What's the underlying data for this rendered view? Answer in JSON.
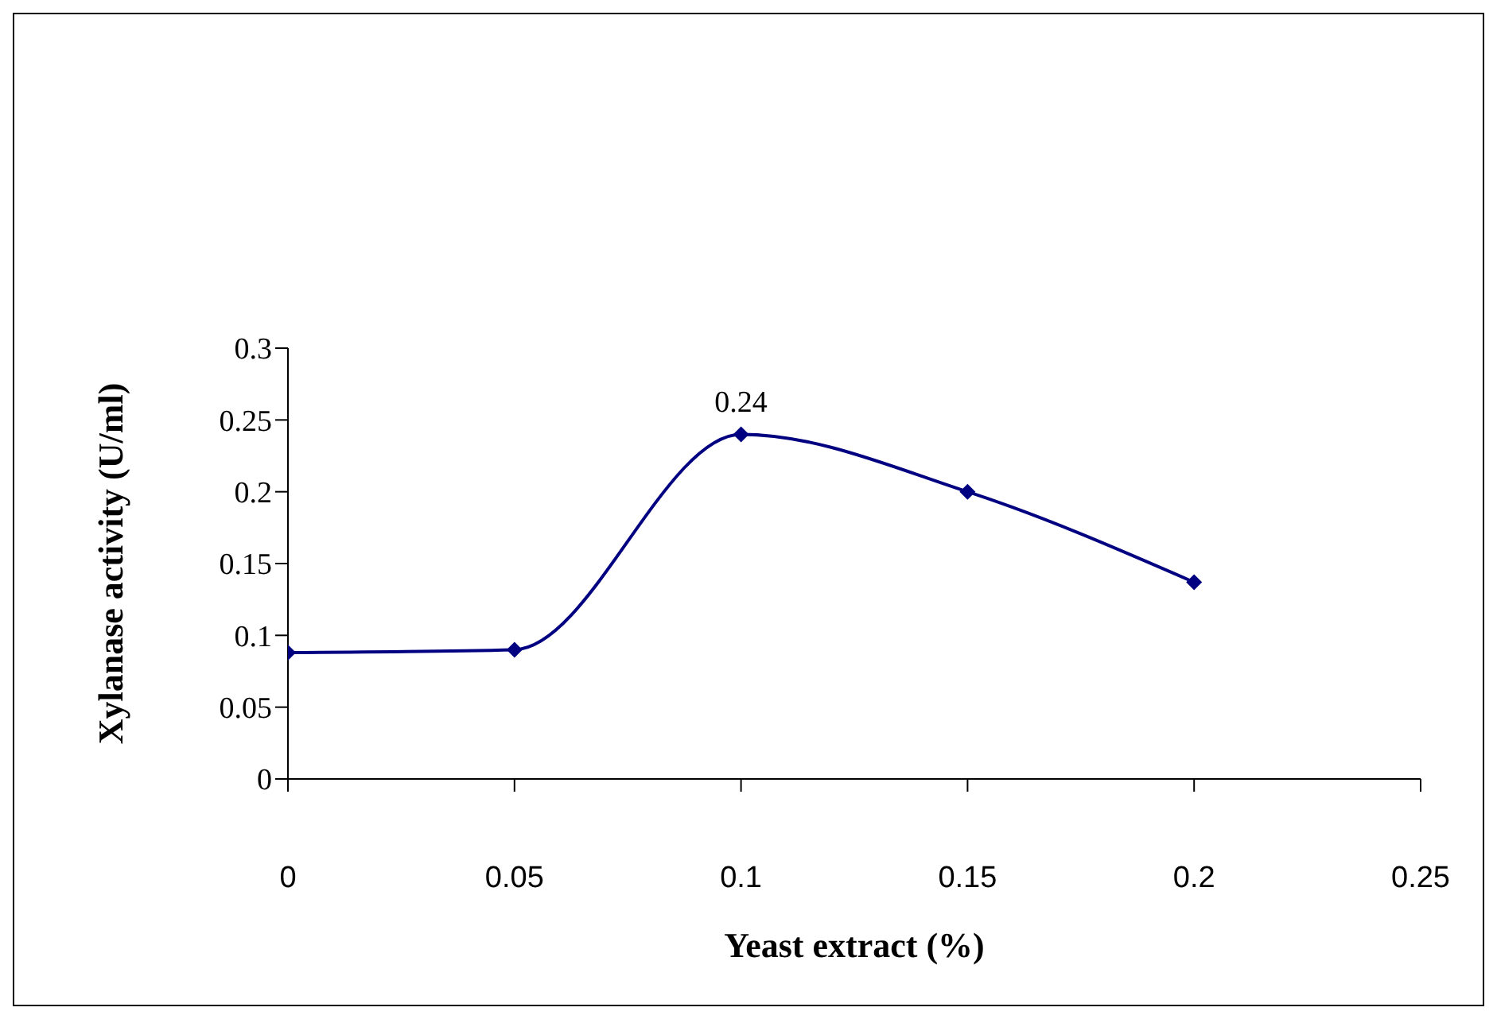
{
  "chart_data": {
    "type": "line",
    "xlabel": "Yeast extract  (%)",
    "ylabel": "Xylanase activity (U/ml)",
    "x": [
      0,
      0.05,
      0.1,
      0.15,
      0.2
    ],
    "series": [
      {
        "color": "#000080",
        "values": [
          0.088,
          0.09,
          0.24,
          0.2,
          0.137
        ],
        "value_labels": [
          null,
          null,
          "0.24",
          null,
          null
        ]
      }
    ],
    "xlim": [
      0,
      0.25
    ],
    "xticks": [
      0,
      0.05,
      0.1,
      0.15,
      0.2,
      0.25
    ],
    "ylim": [
      0,
      0.3
    ],
    "yticks": [
      0,
      0.05,
      0.1,
      0.15,
      0.2,
      0.25,
      0.3
    ],
    "grid": false,
    "legend": false,
    "marker": "diamond",
    "line_style": "solid"
  }
}
